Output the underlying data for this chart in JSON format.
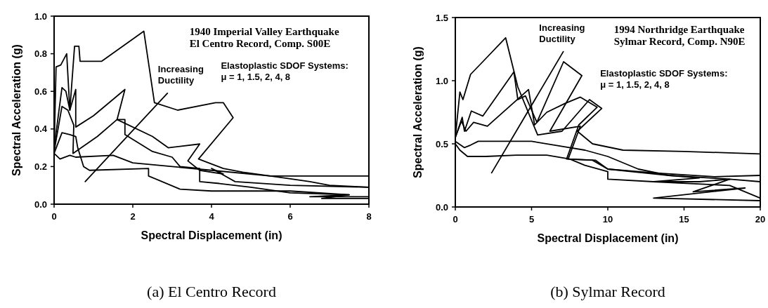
{
  "chart_data": [
    {
      "type": "line",
      "title": "(a) El Centro Record",
      "xlabel": "Spectral Displacement (in)",
      "ylabel": "Spectral Acceleration (g)",
      "xlim": [
        0,
        8
      ],
      "xticks": [
        0,
        2,
        4,
        6,
        8
      ],
      "ylim": [
        0,
        1
      ],
      "yticks": [
        {
          "value": 0,
          "label": "0.0"
        },
        {
          "value": 0.2,
          "label": "0.2"
        },
        {
          "value": 0.4,
          "label": "0.4"
        },
        {
          "value": 0.6,
          "label": "0.6"
        },
        {
          "value": 0.8,
          "label": "0.8"
        },
        {
          "value": 1,
          "label": "1.0"
        }
      ],
      "grid": false,
      "annotations": [
        "1940 Imperial Valley Earthquake\nEl Centro Record, Comp. S00E",
        "Increasing\nDuctility",
        "Elastoplastic SDOF Systems:\nμ = 1, 1.5, 2, 4, 8"
      ],
      "series": [
        {
          "color": "#000000",
          "x": [
            0,
            0.05,
            0.17,
            0.32,
            0.4,
            0.52,
            0.63,
            0.66,
            1.21,
            2.28,
            2.55,
            3.14,
            4.1,
            4.3,
            4.55,
            3.67,
            4.3,
            4.79,
            5.5,
            8
          ],
          "values": [
            0.28,
            0.73,
            0.74,
            0.8,
            0.5,
            0.84,
            0.84,
            0.76,
            0.76,
            0.92,
            0.54,
            0.5,
            0.54,
            0.54,
            0.46,
            0.24,
            0.19,
            0.17,
            0.15,
            0.15
          ]
        },
        {
          "color": "#000000",
          "x": [
            0,
            0.2,
            0.3,
            0.4,
            0.55,
            0.55,
            1,
            1.8,
            1.6,
            2.5,
            2.9,
            3.7,
            3.4,
            3.7,
            4.3,
            4,
            4.6,
            6,
            8
          ],
          "values": [
            0.3,
            0.62,
            0.6,
            0.5,
            0.61,
            0.41,
            0.47,
            0.61,
            0.45,
            0.36,
            0.3,
            0.32,
            0.23,
            0.18,
            0.16,
            0.19,
            0.12,
            0.1,
            0.09
          ]
        },
        {
          "color": "#000000",
          "x": [
            0,
            0.2,
            0.35,
            0.5,
            0.48,
            1.1,
            1.6,
            1.8,
            1.8,
            2.5,
            3,
            3.2,
            3.7,
            3.7,
            4.2,
            5,
            6,
            7.5,
            6.8,
            8
          ],
          "values": [
            0.28,
            0.52,
            0.5,
            0.42,
            0.27,
            0.36,
            0.45,
            0.45,
            0.37,
            0.28,
            0.25,
            0.2,
            0.19,
            0.12,
            0.11,
            0.09,
            0.06,
            0.05,
            0.03,
            0.03
          ]
        },
        {
          "color": "#000000",
          "x": [
            0,
            0.2,
            0.4,
            0.55,
            0.6,
            0.75,
            0.9,
            2.4,
            2.4,
            3.2,
            4,
            6,
            7.5,
            6.5,
            8
          ],
          "values": [
            0.27,
            0.38,
            0.37,
            0.36,
            0.3,
            0.2,
            0.18,
            0.19,
            0.15,
            0.08,
            0.07,
            0.07,
            0.05,
            0.04,
            0.04
          ]
        },
        {
          "color": "#000000",
          "x": [
            0,
            0.15,
            0.4,
            0.55,
            1.5,
            2,
            3,
            4,
            5.5,
            6.5,
            7,
            8
          ],
          "values": [
            0.27,
            0.24,
            0.26,
            0.25,
            0.26,
            0.22,
            0.2,
            0.18,
            0.15,
            0.12,
            0.1,
            0.09
          ]
        },
        {
          "color": "#000000",
          "x": [
            0.79,
            2.88
          ],
          "values": [
            0.12,
            0.59
          ]
        }
      ]
    },
    {
      "type": "line",
      "title": "(b) Sylmar Record",
      "xlabel": "Spectral Displacement (in)",
      "ylabel": "Spectral Acceleration (g)",
      "xlim": [
        0,
        20
      ],
      "xticks": [
        0,
        5,
        10,
        15,
        20
      ],
      "ylim": [
        0,
        1.5
      ],
      "yticks": [
        {
          "value": 0,
          "label": "0.0"
        },
        {
          "value": 0.5,
          "label": "0.5"
        },
        {
          "value": 1,
          "label": "1.0"
        },
        {
          "value": 1.5,
          "label": "1.5"
        }
      ],
      "grid": false,
      "annotations": [
        "1994 Northridge Earthquake\nSylmar Record, Comp. N90E",
        "Increasing\nDuctility",
        "Elastoplastic SDOF Systems:\nμ = 1, 1.5, 2, 4, 8"
      ],
      "series": [
        {
          "color": "#000000",
          "x": [
            0,
            0.3,
            0.5,
            0.7,
            1,
            1.8,
            3.3,
            4.1,
            5.4,
            7,
            8.8,
            9.6,
            8,
            9,
            11,
            15,
            20
          ],
          "values": [
            0.55,
            0.91,
            0.85,
            0.93,
            1.05,
            1.15,
            1.34,
            0.95,
            0.57,
            0.6,
            0.85,
            0.78,
            0.6,
            0.5,
            0.45,
            0.44,
            0.42
          ]
        },
        {
          "color": "#000000",
          "x": [
            0,
            0.45,
            0.6,
            1.05,
            1.8,
            3.84,
            4.1,
            4.6,
            5.35,
            7.1,
            8.3,
            6.2,
            8.2,
            7.4,
            9.2,
            10,
            13,
            17,
            20
          ],
          "values": [
            0.55,
            0.71,
            0.6,
            0.76,
            0.72,
            1.07,
            0.85,
            0.88,
            0.67,
            1.15,
            1.04,
            0.6,
            0.64,
            0.38,
            0.37,
            0.3,
            0.27,
            0.24,
            0.25
          ]
        },
        {
          "color": "#000000",
          "x": [
            0,
            0.4,
            0.7,
            1.2,
            2.1,
            4.8,
            5.2,
            6,
            7.2,
            8.2,
            9.3,
            8.1,
            7.3,
            9,
            10,
            14,
            18,
            15.6,
            19,
            13,
            20
          ],
          "values": [
            0.55,
            0.68,
            0.6,
            0.67,
            0.64,
            0.93,
            0.65,
            0.75,
            0.82,
            0.87,
            0.79,
            0.65,
            0.38,
            0.37,
            0.3,
            0.25,
            0.22,
            0.12,
            0.15,
            0.07,
            0.05
          ]
        },
        {
          "color": "#000000",
          "x": [
            0,
            0.6,
            1,
            1.5,
            5,
            7,
            8.5,
            10,
            12,
            14,
            16,
            13,
            18,
            20
          ],
          "values": [
            0.52,
            0.47,
            0.49,
            0.52,
            0.52,
            0.48,
            0.45,
            0.4,
            0.3,
            0.25,
            0.23,
            0.2,
            0.17,
            0.07
          ]
        },
        {
          "color": "#000000",
          "x": [
            0,
            0.3,
            0.8,
            2,
            4,
            6,
            7.5,
            8.5,
            10,
            10,
            13,
            16,
            18,
            20
          ],
          "values": [
            0.5,
            0.45,
            0.4,
            0.4,
            0.41,
            0.41,
            0.38,
            0.33,
            0.28,
            0.22,
            0.2,
            0.2,
            0.22,
            0.2
          ]
        },
        {
          "color": "#000000",
          "x": [
            2.38,
            7.08
          ],
          "values": [
            0.27,
            1.23
          ]
        }
      ]
    }
  ]
}
